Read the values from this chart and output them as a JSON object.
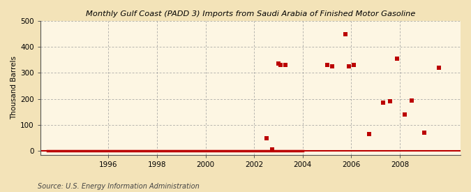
{
  "title": "Monthly Gulf Coast (PADD 3) Imports from Saudi Arabia of Finished Motor Gasoline",
  "ylabel": "Thousand Barrels",
  "source": "Source: U.S. Energy Information Administration",
  "background_color": "#f3e3b8",
  "plot_bg_color": "#fdf6e3",
  "grid_color": "#999999",
  "marker_color": "#bb0000",
  "xlim": [
    1993.2,
    2010.5
  ],
  "ylim": [
    -15,
    500
  ],
  "yticks": [
    0,
    100,
    200,
    300,
    400,
    500
  ],
  "xticks": [
    1996,
    1998,
    2000,
    2002,
    2004,
    2006,
    2008
  ],
  "data_x": [
    2002.5,
    2002.75,
    2003.0,
    2003.1,
    2003.3,
    2005.0,
    2005.2,
    2005.75,
    2005.9,
    2006.1,
    2006.75,
    2007.3,
    2007.6,
    2007.9,
    2008.2,
    2008.5,
    2009.0,
    2009.6
  ],
  "data_y": [
    50,
    5,
    335,
    330,
    330,
    330,
    325,
    450,
    325,
    330,
    65,
    185,
    190,
    355,
    140,
    195,
    70,
    320
  ],
  "zero_line_x_start": 1993.5,
  "zero_line_x_end": 2004.0,
  "title_fontsize": 8.2,
  "tick_fontsize": 7.5,
  "ylabel_fontsize": 7.5,
  "source_fontsize": 7.0
}
